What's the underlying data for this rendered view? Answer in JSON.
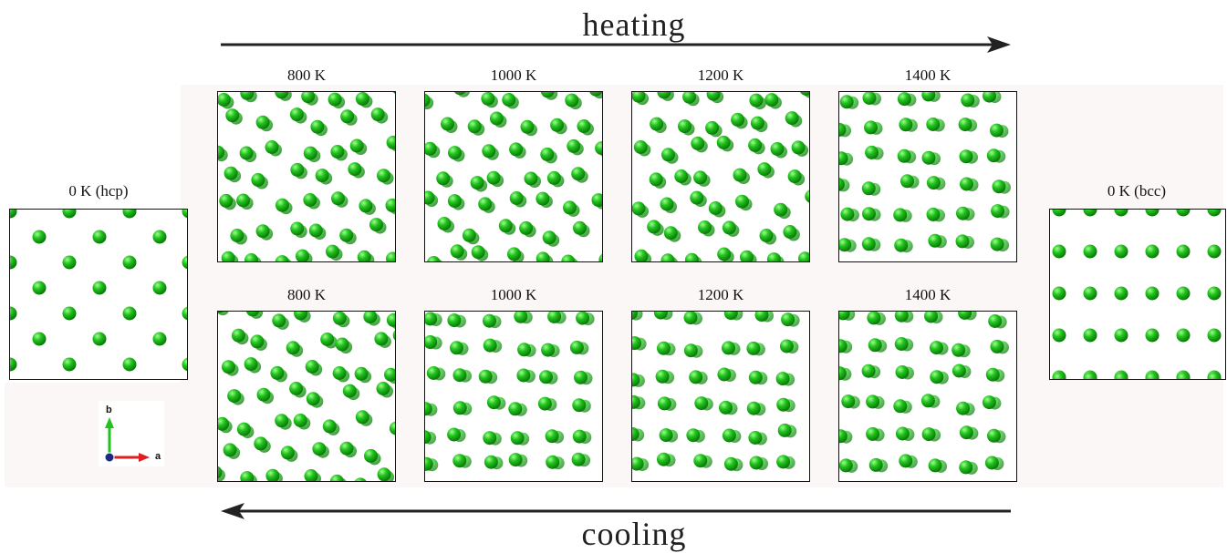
{
  "heating_label": "heating",
  "cooling_label": "cooling",
  "colors": {
    "atom": "#22c21e",
    "atom_highlight": "#9dff8f",
    "atom_shadow": "#0a7a08",
    "arrow": "#222222"
  },
  "panels": {
    "hcp": {
      "title": "0 K (hcp)"
    },
    "bcc": {
      "title": "0 K (bcc)"
    },
    "heat": [
      {
        "title": "800 K"
      },
      {
        "title": "1000 K"
      },
      {
        "title": "1200 K"
      },
      {
        "title": "1400 K"
      }
    ],
    "cool": [
      {
        "title": "800 K"
      },
      {
        "title": "1000 K"
      },
      {
        "title": "1200 K"
      },
      {
        "title": "1400 K"
      }
    ]
  },
  "axes": {
    "b_label": "b",
    "a_label": "a",
    "b_color": "#22c21e",
    "a_color": "#e02020",
    "origin_color": "#1a2a80"
  }
}
